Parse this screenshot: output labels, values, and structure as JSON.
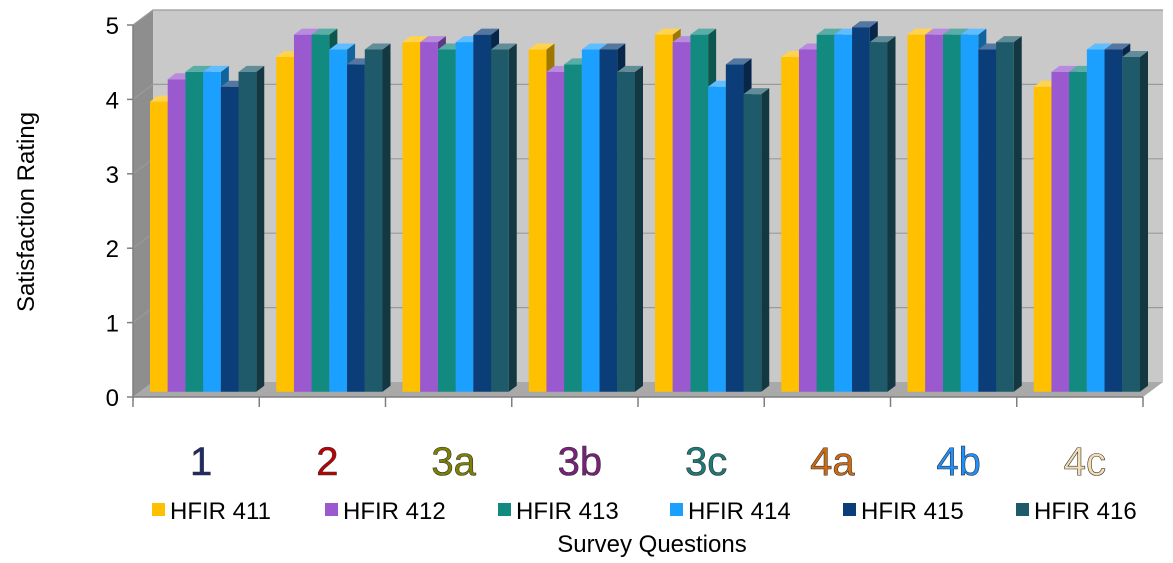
{
  "chart_data": {
    "type": "bar",
    "xlabel": "Survey Questions",
    "ylabel": "Satisfaction Rating",
    "ylim": [
      0,
      5
    ],
    "yticks": [
      0,
      1,
      2,
      3,
      4,
      5
    ],
    "grid": true,
    "legend_placement": "bottom",
    "categories": [
      "1",
      "2",
      "3a",
      "3b",
      "3c",
      "4a",
      "4b",
      "4c"
    ],
    "category_colors": [
      "#1F2A6B",
      "#C00000",
      "#808000",
      "#7B1F7B",
      "#1B7A7A",
      "#D06A10",
      "#1E90FF",
      "#F5DEB3"
    ],
    "series": [
      {
        "name": "HFIR 411",
        "color": "#FFC000",
        "values": [
          3.9,
          4.5,
          4.7,
          4.6,
          4.8,
          4.5,
          4.8,
          4.1
        ]
      },
      {
        "name": "HFIR 412",
        "color": "#9B59D0",
        "values": [
          4.2,
          4.8,
          4.7,
          4.3,
          4.7,
          4.6,
          4.8,
          4.3
        ]
      },
      {
        "name": "HFIR 413",
        "color": "#138A80",
        "values": [
          4.3,
          4.8,
          4.6,
          4.4,
          4.8,
          4.8,
          4.8,
          4.3
        ]
      },
      {
        "name": "HFIR 414",
        "color": "#1CA0FF",
        "values": [
          4.3,
          4.6,
          4.7,
          4.6,
          4.1,
          4.8,
          4.8,
          4.6
        ]
      },
      {
        "name": "HFIR 415",
        "color": "#0B3D78",
        "values": [
          4.1,
          4.4,
          4.8,
          4.6,
          4.4,
          4.9,
          4.6,
          4.6
        ]
      },
      {
        "name": "HFIR 416",
        "color": "#1E5A6A",
        "values": [
          4.3,
          4.6,
          4.6,
          4.3,
          4.0,
          4.7,
          4.7,
          4.5
        ]
      }
    ]
  }
}
